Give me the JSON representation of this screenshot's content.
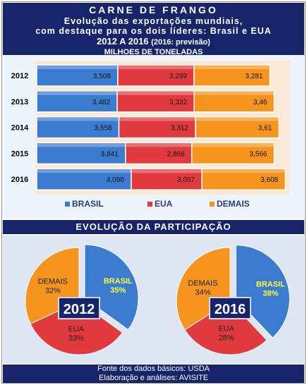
{
  "header": {
    "title": "CARNE DE FRANGO",
    "subtitle_line1": "Evolução das exportações mundiais,",
    "subtitle_line2": "com destaque para os dois líderes: Brasil e EUA",
    "period": "2012 A 2016",
    "period_note": "(2016: previsão)",
    "unit": "MILHOES DE TONELADAS"
  },
  "pie_section_title": "EVOLUÇÃO DA PARTICIPAÇÃO",
  "footer": {
    "line1": "Fonte dos dados básicos: USDA",
    "line2": "Elaboração e análises: AVISITE"
  },
  "colors": {
    "brasil": "#3b7bd0",
    "eua": "#e0393e",
    "demais": "#f7941e",
    "header": "#16246a",
    "brasil_label_on_pie": "#ffff33"
  },
  "chart_data": [
    {
      "type": "bar",
      "orientation": "horizontal",
      "stacked": true,
      "categories": [
        "2012",
        "2013",
        "2014",
        "2015",
        "2016"
      ],
      "series": [
        {
          "name": "BRASIL",
          "values": [
            3.508,
            3.482,
            3.558,
            3.841,
            4.09
          ],
          "labels": [
            "3,508",
            "3,482",
            "3,558",
            "3,841",
            "4,090"
          ]
        },
        {
          "name": "EUA",
          "values": [
            3.299,
            3.332,
            3.312,
            2.866,
            3.057
          ],
          "labels": [
            "3,299",
            "3,332",
            "3,312",
            "2,866",
            "3,057"
          ]
        },
        {
          "name": "DEMAIS",
          "values": [
            3.281,
            3.46,
            3.61,
            3.566,
            3.608
          ],
          "labels": [
            "3,281",
            "3,46",
            "3,61",
            "3,566",
            "3,608"
          ]
        }
      ],
      "legend_position": "bottom"
    },
    {
      "type": "pie",
      "center_label": "2012",
      "slices": [
        {
          "name": "BRASIL",
          "value": 35,
          "label": "35%"
        },
        {
          "name": "EUA",
          "value": 33,
          "label": "33%"
        },
        {
          "name": "DEMAIS",
          "value": 32,
          "label": "32%"
        }
      ]
    },
    {
      "type": "pie",
      "center_label": "2016",
      "slices": [
        {
          "name": "BRASIL",
          "value": 38,
          "label": "38%"
        },
        {
          "name": "EUA",
          "value": 28,
          "label": "28%"
        },
        {
          "name": "DEMAIS",
          "value": 34,
          "label": "34%"
        }
      ]
    }
  ]
}
